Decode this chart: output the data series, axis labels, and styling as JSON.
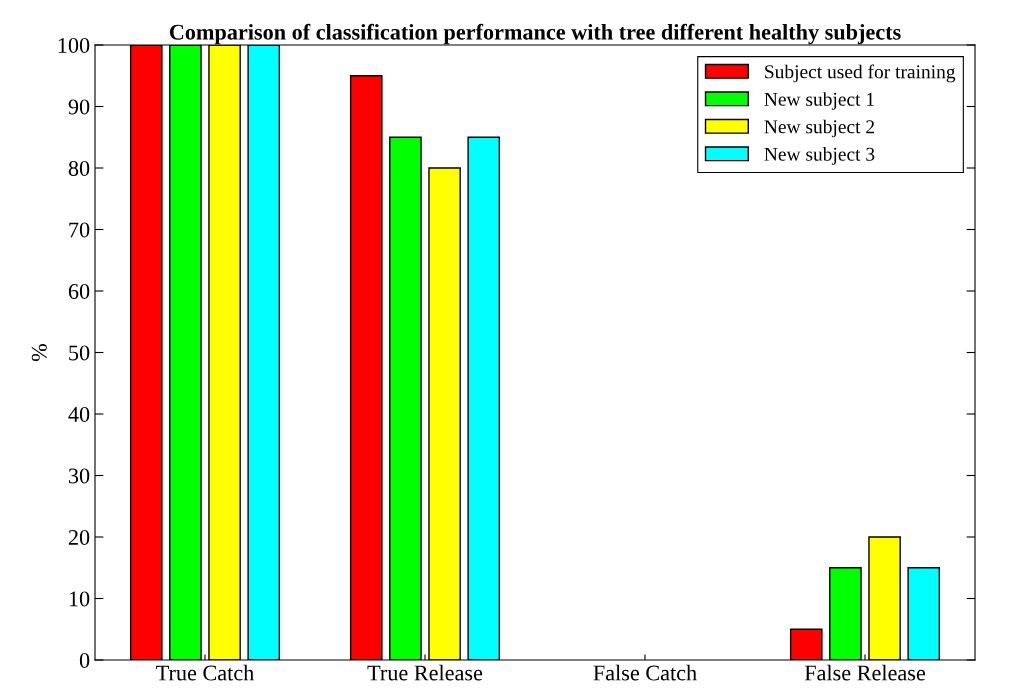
{
  "chart_data": {
    "type": "bar",
    "title": "Comparison of classification performance with tree different healthy subjects",
    "ylabel": "%",
    "categories": [
      "True Catch",
      "True Release",
      "False Catch",
      "False Release"
    ],
    "series": [
      {
        "name": "Subject used for training",
        "color": "#ff0000",
        "values": [
          100,
          95,
          0,
          5
        ]
      },
      {
        "name": "New subject 1",
        "color": "#00ff00",
        "values": [
          100,
          85,
          0,
          15
        ]
      },
      {
        "name": "New subject 2",
        "color": "#ffff00",
        "values": [
          100,
          80,
          0,
          20
        ]
      },
      {
        "name": "New subject 3",
        "color": "#00ffff",
        "values": [
          100,
          85,
          0,
          15
        ]
      }
    ],
    "ylim": [
      0,
      100
    ],
    "yticks": [
      0,
      10,
      20,
      30,
      40,
      50,
      60,
      70,
      80,
      90,
      100
    ],
    "grid": false,
    "legend": "top right"
  }
}
